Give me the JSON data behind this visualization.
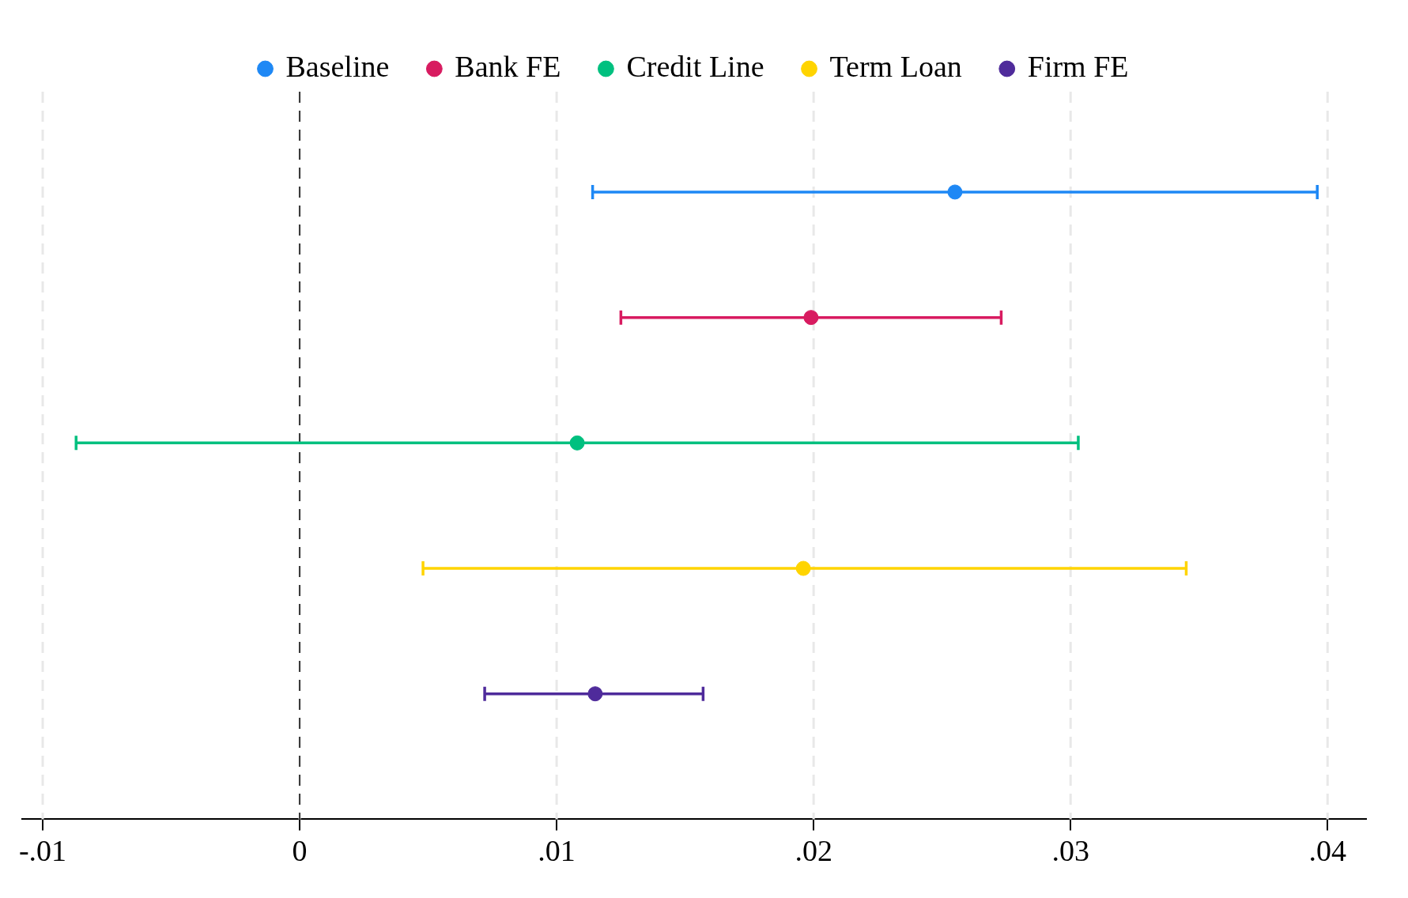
{
  "chart_data": {
    "type": "scatter",
    "orientation": "horizontal",
    "categories": [
      null,
      null,
      null,
      null,
      null
    ],
    "series": [
      {
        "name": "Baseline",
        "color": "#1e88f5",
        "values": [
          0.0255,
          null,
          null,
          null,
          null
        ],
        "errors": [
          [
            0.0114,
            0.0396
          ],
          null,
          null,
          null,
          null
        ]
      },
      {
        "name": "Bank FE",
        "color": "#d81b60",
        "values": [
          null,
          0.0199,
          null,
          null,
          null
        ],
        "errors": [
          null,
          [
            0.0125,
            0.0273
          ],
          null,
          null,
          null
        ]
      },
      {
        "name": "Credit Line",
        "color": "#00c07f",
        "values": [
          null,
          null,
          0.0108,
          null,
          null
        ],
        "errors": [
          null,
          null,
          [
            -0.0087,
            0.0303
          ],
          null,
          null
        ]
      },
      {
        "name": "Term Loan",
        "color": "#ffd400",
        "values": [
          null,
          null,
          null,
          0.0196,
          null
        ],
        "errors": [
          null,
          null,
          null,
          [
            0.0048,
            0.0345
          ],
          null
        ]
      },
      {
        "name": "Firm FE",
        "color": "#4f2b9b",
        "values": [
          null,
          null,
          null,
          null,
          0.0115
        ],
        "errors": [
          null,
          null,
          null,
          null,
          [
            0.0072,
            0.0157
          ]
        ]
      }
    ],
    "xlim": [
      -0.0108,
      0.0415
    ],
    "xticks": [
      {
        "value": -0.01,
        "label": "-.01"
      },
      0,
      {
        "value": 0.01,
        "label": ".01"
      },
      {
        "value": 0.02,
        "label": ".02"
      },
      {
        "value": 0.03,
        "label": ".03"
      },
      {
        "value": 0.04,
        "label": ".04"
      }
    ],
    "ref_lines": [
      {
        "axis": "x",
        "value": 0,
        "color": "#000000",
        "line_style": "dashed"
      }
    ],
    "grid": "x",
    "legend": "top",
    "marker": "circle"
  }
}
